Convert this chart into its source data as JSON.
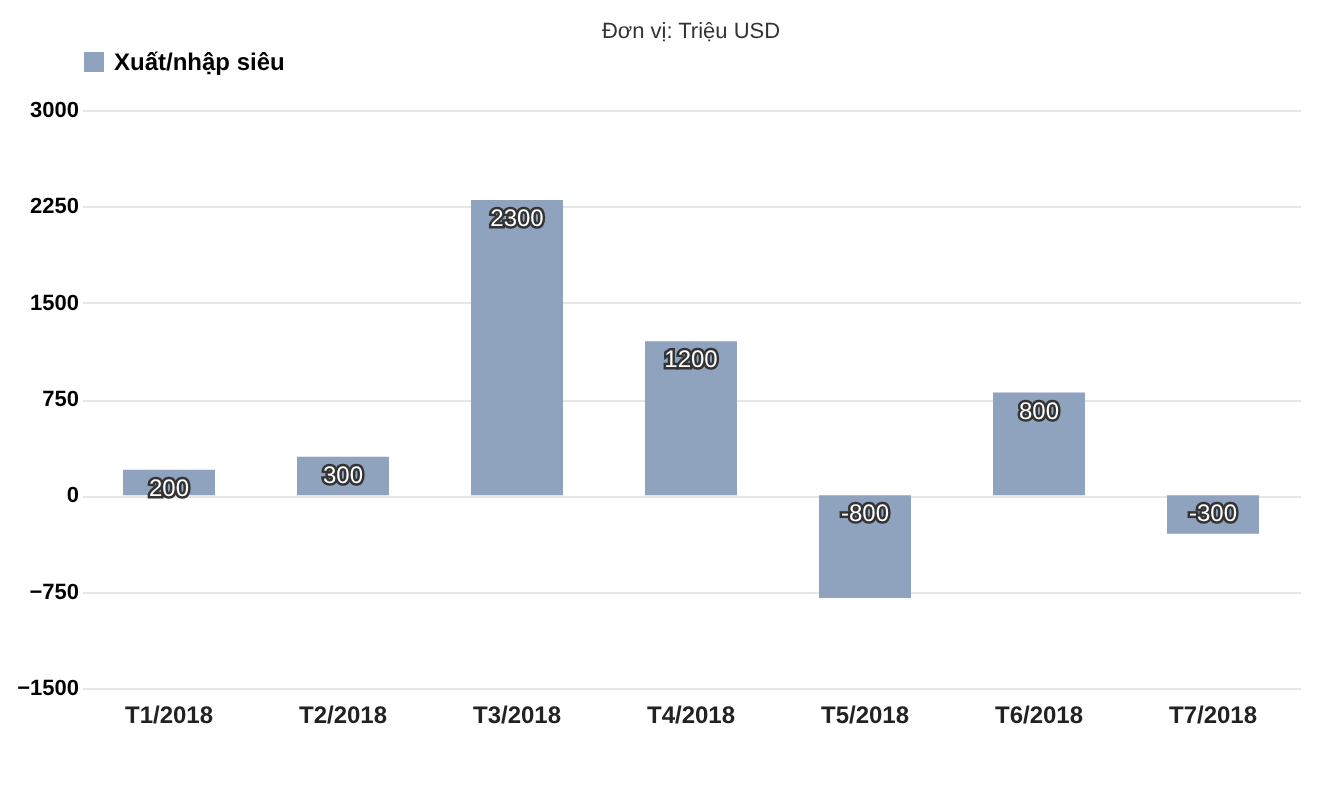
{
  "chart_data": {
    "type": "bar",
    "title": "Đơn vị: Triệu USD",
    "categories": [
      "T1/2018",
      "T2/2018",
      "T3/2018",
      "T4/2018",
      "T5/2018",
      "T6/2018",
      "T7/2018"
    ],
    "series": [
      {
        "name": "Xuất/nhập siêu",
        "color": "#8fa3bf",
        "values": [
          200,
          300,
          2300,
          1200,
          -800,
          800,
          -300
        ]
      }
    ],
    "ylim": [
      -1500,
      3000
    ],
    "yticks": [
      -1500,
      -750,
      0,
      750,
      1500,
      2250,
      3000
    ],
    "grid": "y",
    "legend": "top",
    "data_labels": true
  }
}
